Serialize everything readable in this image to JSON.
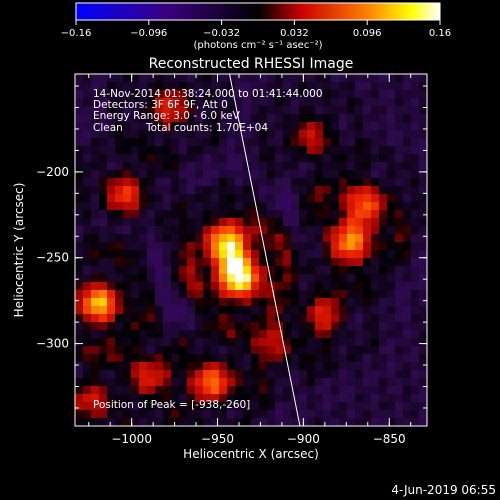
{
  "chart_data": {
    "type": "heatmap",
    "title": "Reconstructed RHESSI Image",
    "xlabel": "Heliocentric X (arcsec)",
    "ylabel": "Heliocentric Y (arcsec)",
    "xlim": [
      -1033,
      -828
    ],
    "ylim": [
      -348,
      -143
    ],
    "xticks": [
      -1000,
      -950,
      -900,
      -850
    ],
    "yticks": [
      -200,
      -250,
      -300
    ],
    "xtick_labels": [
      "−1000",
      "−950",
      "−900",
      "−850"
    ],
    "ytick_labels": [
      "−200",
      "−250",
      "−300"
    ],
    "colorbar": {
      "min": -0.16,
      "max": 0.16,
      "ticks": [
        -0.16,
        -0.096,
        -0.032,
        0.032,
        0.096,
        0.16
      ],
      "tick_labels": [
        "−0.16",
        "−0.096",
        "−0.032",
        "0.032",
        "0.096",
        "0.16"
      ],
      "unit_label": "(photons cm⁻² s⁻¹ asec⁻²)",
      "colors": [
        "#0000ff",
        "#2a0050",
        "#000000",
        "#ff0000",
        "#ffff00",
        "#ffffff"
      ]
    },
    "annotations": {
      "time_range": "14-Nov-2014 01:38:24.000 to 01:41:44.000",
      "detectors": "Detectors: 3F 6F 9F, Att 0",
      "energy": "Energy Range: 3.0 - 6.0 keV",
      "method": "Clean",
      "total_counts": "Total counts: 1.70E+04",
      "peak": "Position of Peak = [-938,-260]"
    },
    "sources": [
      {
        "x": -938,
        "y": -260,
        "value": 0.16
      },
      {
        "x": -944,
        "y": -243,
        "value": 0.13
      },
      {
        "x": -1019,
        "y": -277,
        "value": 0.12
      },
      {
        "x": -872,
        "y": -240,
        "value": 0.1
      },
      {
        "x": -865,
        "y": -220,
        "value": 0.08
      },
      {
        "x": -953,
        "y": -323,
        "value": 0.09
      },
      {
        "x": -1004,
        "y": -213,
        "value": 0.07
      },
      {
        "x": -978,
        "y": -163,
        "value": 0.06
      },
      {
        "x": -895,
        "y": -180,
        "value": 0.05
      },
      {
        "x": -991,
        "y": -318,
        "value": 0.06
      },
      {
        "x": -918,
        "y": -300,
        "value": 0.05
      },
      {
        "x": -888,
        "y": -283,
        "value": 0.06
      },
      {
        "x": -1025,
        "y": -333,
        "value": 0.05
      }
    ],
    "limb_line": {
      "x": [
        -943,
        -902
      ],
      "y": [
        -143,
        -348
      ]
    }
  },
  "footer": {
    "date": "4-Jun-2019 06:55"
  }
}
